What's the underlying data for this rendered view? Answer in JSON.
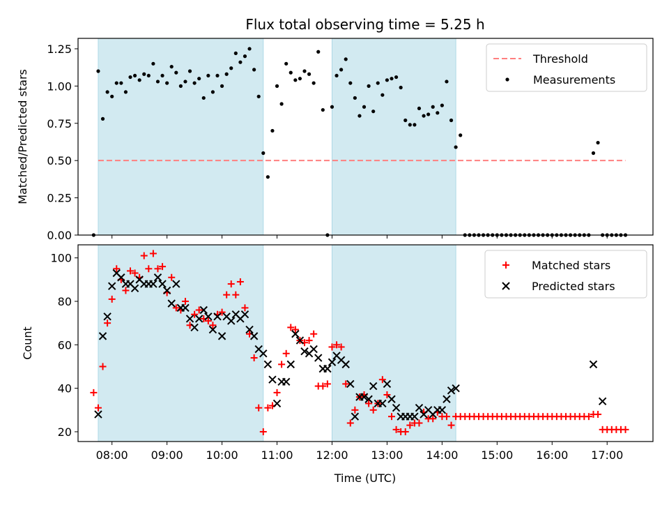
{
  "figure": {
    "title": "Flux total observing time = 5.25 h",
    "xlabel": "Time (UTC)"
  },
  "colors": {
    "shade": "#add8e6",
    "threshold": "#ff7f7f",
    "measurement": "#000000",
    "matched": "#ff0000",
    "predicted": "#000000"
  },
  "chart_data": [
    {
      "type": "scatter",
      "panel": "top",
      "ylabel": "Matched/Predicted stars",
      "xlim": [
        "07:23",
        "17:50"
      ],
      "ylim": [
        0,
        1.32
      ],
      "yticks": [
        "0.00",
        "0.25",
        "0.50",
        "0.75",
        "1.00",
        "1.25"
      ],
      "ytick_values": [
        0,
        0.25,
        0.5,
        0.75,
        1.0,
        1.25
      ],
      "shaded_intervals": [
        [
          "07:45",
          "10:45"
        ],
        [
          "12:00",
          "14:15"
        ]
      ],
      "threshold": {
        "name": "Threshold",
        "y": 0.5,
        "x_start": "07:45",
        "x_end": "17:20"
      },
      "legend": {
        "position": "top-right",
        "entries": [
          "Threshold",
          "Measurements"
        ]
      },
      "series": [
        {
          "name": "Measurements",
          "x": [
            "07:40",
            "07:45",
            "07:50",
            "07:55",
            "08:00",
            "08:05",
            "08:10",
            "08:15",
            "08:20",
            "08:25",
            "08:30",
            "08:35",
            "08:40",
            "08:45",
            "08:50",
            "08:55",
            "09:00",
            "09:05",
            "09:10",
            "09:15",
            "09:20",
            "09:25",
            "09:30",
            "09:35",
            "09:40",
            "09:45",
            "09:50",
            "09:55",
            "10:00",
            "10:05",
            "10:10",
            "10:15",
            "10:20",
            "10:25",
            "10:30",
            "10:35",
            "10:40",
            "10:45",
            "10:50",
            "10:55",
            "11:00",
            "11:05",
            "11:10",
            "11:15",
            "11:20",
            "11:25",
            "11:30",
            "11:35",
            "11:40",
            "11:45",
            "11:50",
            "11:55",
            "12:00",
            "12:05",
            "12:10",
            "12:15",
            "12:20",
            "12:25",
            "12:30",
            "12:35",
            "12:40",
            "12:45",
            "12:50",
            "12:55",
            "13:00",
            "13:05",
            "13:10",
            "13:15",
            "13:20",
            "13:25",
            "13:30",
            "13:35",
            "13:40",
            "13:45",
            "13:50",
            "13:55",
            "14:00",
            "14:05",
            "14:10",
            "14:15",
            "14:20",
            "14:25",
            "14:30",
            "14:35",
            "14:40",
            "14:45",
            "14:50",
            "14:55",
            "15:00",
            "15:05",
            "15:10",
            "15:15",
            "15:20",
            "15:25",
            "15:30",
            "15:35",
            "15:40",
            "15:45",
            "15:50",
            "15:55",
            "16:00",
            "16:05",
            "16:10",
            "16:15",
            "16:20",
            "16:25",
            "16:30",
            "16:35",
            "16:40",
            "16:45",
            "16:50",
            "16:55",
            "17:00",
            "17:05",
            "17:10",
            "17:15",
            "17:20"
          ],
          "y": [
            0.0,
            1.1,
            0.78,
            0.96,
            0.93,
            1.02,
            1.02,
            0.96,
            1.06,
            1.07,
            1.04,
            1.08,
            1.07,
            1.15,
            1.03,
            1.07,
            1.02,
            1.13,
            1.09,
            1.0,
            1.03,
            1.1,
            1.02,
            1.05,
            0.92,
            1.07,
            0.96,
            1.07,
            1.0,
            1.08,
            1.12,
            1.22,
            1.16,
            1.2,
            1.25,
            1.11,
            0.93,
            0.55,
            0.39,
            0.7,
            1.0,
            0.88,
            1.15,
            1.09,
            1.04,
            1.05,
            1.1,
            1.08,
            1.02,
            1.23,
            0.84,
            0.0,
            0.86,
            1.07,
            1.11,
            1.18,
            1.02,
            0.92,
            0.8,
            0.86,
            1.0,
            0.83,
            1.02,
            0.94,
            1.04,
            1.05,
            1.06,
            0.99,
            0.77,
            0.74,
            0.74,
            0.85,
            0.8,
            0.81,
            0.86,
            0.82,
            0.87,
            1.03,
            0.77,
            0.59,
            0.67,
            0.0,
            0.0,
            0.0,
            0.0,
            0.0,
            0.0,
            0.0,
            0.0,
            0.0,
            0.0,
            0.0,
            0.0,
            0.0,
            0.0,
            0.0,
            0.0,
            0.0,
            0.0,
            0.0,
            0.0,
            0.0,
            0.0,
            0.0,
            0.0,
            0.0,
            0.0,
            0.0,
            0.0,
            0.55,
            0.62,
            0.0,
            0.0,
            0.0,
            0.0,
            0.0,
            0.0
          ]
        }
      ]
    },
    {
      "type": "scatter",
      "panel": "bottom",
      "ylabel": "Count",
      "xlim": [
        "07:23",
        "17:50"
      ],
      "ylim": [
        15.5,
        106
      ],
      "yticks": [
        "20",
        "40",
        "60",
        "80",
        "100"
      ],
      "ytick_values": [
        20,
        40,
        60,
        80,
        100
      ],
      "xticks": [
        "08:00",
        "09:00",
        "10:00",
        "11:00",
        "12:00",
        "13:00",
        "14:00",
        "15:00",
        "16:00",
        "17:00"
      ],
      "shaded_intervals": [
        [
          "07:45",
          "10:45"
        ],
        [
          "12:00",
          "14:15"
        ]
      ],
      "legend": {
        "position": "top-right",
        "entries": [
          "Matched stars",
          "Predicted stars"
        ]
      },
      "series": [
        {
          "name": "Matched stars",
          "x": [
            "07:40",
            "07:45",
            "07:50",
            "07:55",
            "08:00",
            "08:05",
            "08:10",
            "08:15",
            "08:20",
            "08:25",
            "08:30",
            "08:35",
            "08:40",
            "08:45",
            "08:50",
            "08:55",
            "09:00",
            "09:05",
            "09:10",
            "09:15",
            "09:20",
            "09:25",
            "09:30",
            "09:35",
            "09:40",
            "09:45",
            "09:50",
            "09:55",
            "10:00",
            "10:05",
            "10:10",
            "10:15",
            "10:20",
            "10:25",
            "10:30",
            "10:35",
            "10:40",
            "10:45",
            "10:50",
            "10:55",
            "11:00",
            "11:05",
            "11:10",
            "11:15",
            "11:20",
            "11:25",
            "11:30",
            "11:35",
            "11:40",
            "11:45",
            "11:50",
            "11:55",
            "12:00",
            "12:05",
            "12:10",
            "12:15",
            "12:20",
            "12:25",
            "12:30",
            "12:35",
            "12:40",
            "12:45",
            "12:50",
            "12:55",
            "13:00",
            "13:05",
            "13:10",
            "13:15",
            "13:20",
            "13:25",
            "13:30",
            "13:35",
            "13:40",
            "13:45",
            "13:50",
            "13:55",
            "14:00",
            "14:05",
            "14:10",
            "14:15",
            "14:20",
            "14:25",
            "14:30",
            "14:35",
            "14:40",
            "14:45",
            "14:50",
            "14:55",
            "15:00",
            "15:05",
            "15:10",
            "15:15",
            "15:20",
            "15:25",
            "15:30",
            "15:35",
            "15:40",
            "15:45",
            "15:50",
            "15:55",
            "16:00",
            "16:05",
            "16:10",
            "16:15",
            "16:20",
            "16:25",
            "16:30",
            "16:35",
            "16:40",
            "16:45",
            "16:50",
            "16:55",
            "17:00",
            "17:05",
            "17:10",
            "17:15",
            "17:20"
          ],
          "y": [
            38,
            31,
            50,
            70,
            81,
            95,
            90,
            85,
            94,
            93,
            91,
            101,
            95,
            102,
            95,
            96,
            84,
            91,
            77,
            76,
            80,
            69,
            74,
            76,
            72,
            71,
            69,
            74,
            75,
            83,
            88,
            83,
            89,
            77,
            65,
            54,
            31,
            20,
            31,
            32,
            38,
            51,
            56,
            68,
            67,
            62,
            61,
            62,
            65,
            41,
            41,
            42,
            59,
            60,
            59,
            42,
            24,
            30,
            36,
            37,
            33,
            30,
            33,
            44,
            37,
            27,
            21,
            20,
            20,
            23,
            24,
            24,
            29,
            26,
            26,
            29,
            27,
            27,
            23,
            27,
            27,
            27,
            27,
            27,
            27,
            27,
            27,
            27,
            27,
            27,
            27,
            27,
            27,
            27,
            27,
            27,
            27,
            27,
            27,
            27,
            27,
            27,
            27,
            27,
            27,
            27,
            27,
            27,
            27,
            28,
            28,
            21,
            21,
            21,
            21,
            21,
            21
          ]
        },
        {
          "name": "Predicted stars",
          "x": [
            "07:45",
            "07:50",
            "07:55",
            "08:00",
            "08:05",
            "08:10",
            "08:15",
            "08:20",
            "08:25",
            "08:30",
            "08:35",
            "08:40",
            "08:45",
            "08:50",
            "08:55",
            "09:00",
            "09:05",
            "09:10",
            "09:15",
            "09:20",
            "09:25",
            "09:30",
            "09:35",
            "09:40",
            "09:45",
            "09:50",
            "09:55",
            "10:00",
            "10:05",
            "10:10",
            "10:15",
            "10:20",
            "10:25",
            "10:30",
            "10:35",
            "10:40",
            "10:45",
            "10:50",
            "10:55",
            "11:00",
            "11:05",
            "11:10",
            "11:15",
            "11:20",
            "11:25",
            "11:30",
            "11:35",
            "11:40",
            "11:45",
            "11:50",
            "11:55",
            "12:00",
            "12:05",
            "12:10",
            "12:15",
            "12:20",
            "12:25",
            "12:30",
            "12:35",
            "12:40",
            "12:45",
            "12:50",
            "12:55",
            "13:00",
            "13:05",
            "13:10",
            "13:15",
            "13:20",
            "13:25",
            "13:30",
            "13:35",
            "13:40",
            "13:45",
            "13:50",
            "13:55",
            "14:00",
            "14:05",
            "14:10",
            "14:15",
            "16:45",
            "16:55"
          ],
          "y": [
            28,
            64,
            73,
            87,
            93,
            91,
            88,
            88,
            86,
            90,
            88,
            88,
            88,
            91,
            88,
            85,
            79,
            88,
            77,
            77,
            72,
            68,
            72,
            76,
            73,
            67,
            73,
            64,
            73,
            71,
            74,
            72,
            74,
            67,
            64,
            58,
            56,
            51,
            44,
            33,
            43,
            43,
            51,
            65,
            62,
            57,
            56,
            58,
            54,
            49,
            49,
            52,
            55,
            53,
            51,
            42,
            27,
            36,
            36,
            35,
            41,
            33,
            33,
            42,
            35,
            31,
            27,
            27,
            27,
            27,
            31,
            28,
            30,
            28,
            30,
            30,
            35,
            39,
            40,
            51,
            34
          ]
        }
      ]
    }
  ]
}
